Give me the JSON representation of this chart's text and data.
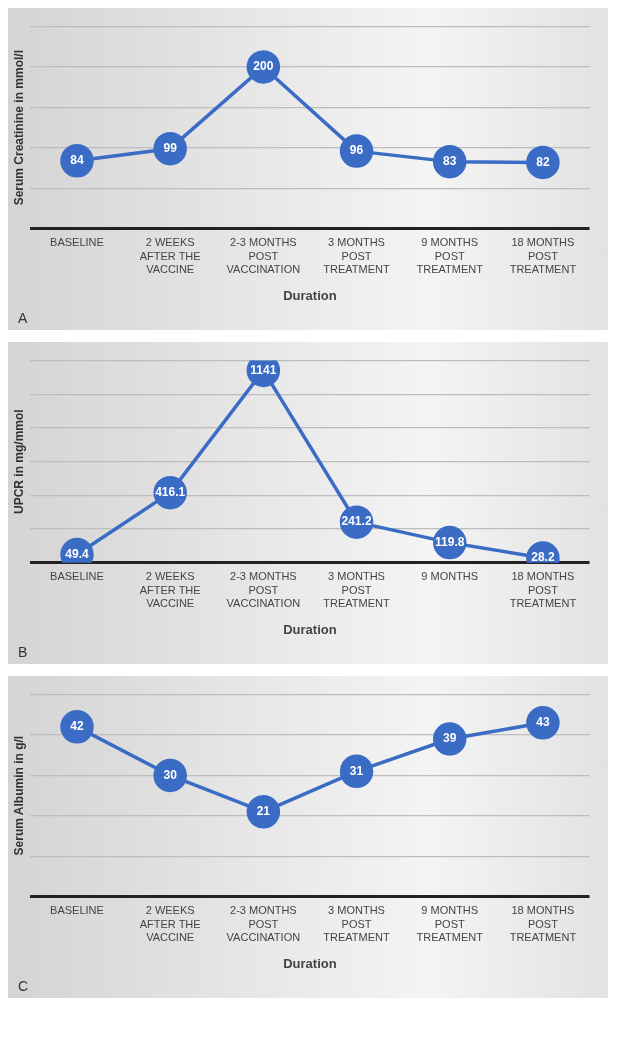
{
  "chart_data": [
    {
      "type": "line",
      "categories": [
        "BASELINE",
        "2 WEEKS AFTER THE VACCINE",
        "2-3 MONTHS POST VACCINATION",
        "3 MONTHS POST TREATMENT",
        "9 MONTHS POST TREATMENT",
        "18 MONTHS POST TREATMENT"
      ],
      "values": [
        84,
        99,
        200,
        96,
        83,
        82
      ],
      "color": "#3b6cc5",
      "ylabel": "Serum Creatinine in mmol/l",
      "xlabel": "Duration",
      "annotations": [
        "A"
      ],
      "ylim": [
        0,
        250
      ],
      "yticks": [
        {
          "value": 0,
          "label": null
        },
        {
          "value": 50,
          "label": null
        },
        {
          "value": 100,
          "label": null
        },
        {
          "value": 150,
          "label": null
        },
        {
          "value": 200,
          "label": null
        },
        {
          "value": 250,
          "label": null
        }
      ],
      "grid": "y",
      "tick_labels": "x",
      "data_labels": true,
      "marker": "circle",
      "line_style": "solid"
    },
    {
      "type": "line",
      "categories": [
        "BASELINE",
        "2 WEEKS AFTER THE VACCINE",
        "2-3 MONTHS POST VACCINATION",
        "3 MONTHS POST TREATMENT",
        "9 MONTHS",
        "18 MONTHS POST TREATMENT"
      ],
      "values": [
        49.4,
        416.1,
        1141,
        241.2,
        119.8,
        28.2
      ],
      "color": "#3b6cc5",
      "ylabel": "UPCR in mg/mmol",
      "xlabel": "Duration",
      "annotations": [
        "B"
      ],
      "ylim": [
        0,
        1200
      ],
      "yticks": [
        {
          "value": 0,
          "label": null
        },
        {
          "value": 200,
          "label": null
        },
        {
          "value": 400,
          "label": null
        },
        {
          "value": 600,
          "label": null
        },
        {
          "value": 800,
          "label": null
        },
        {
          "value": 1000,
          "label": null
        },
        {
          "value": 1200,
          "label": null
        }
      ],
      "grid": "y",
      "tick_labels": "x",
      "data_labels": true,
      "marker": "circle",
      "line_style": "solid"
    },
    {
      "type": "line",
      "categories": [
        "BASELINE",
        "2 WEEKS AFTER THE VACCINE",
        "2-3 MONTHS POST VACCINATION",
        "3 MONTHS POST TREATMENT",
        "9 MONTHS POST TREATMENT",
        "18 MONTHS POST TREATMENT"
      ],
      "values": [
        42,
        30,
        21,
        31,
        39,
        43
      ],
      "color": "#3b6cc5",
      "ylabel": "Serum Albumin in g/l",
      "xlabel": "Duration",
      "annotations": [
        "C"
      ],
      "ylim": [
        0,
        50
      ],
      "yticks": [
        {
          "value": 0,
          "label": null
        },
        {
          "value": 10,
          "label": null
        },
        {
          "value": 20,
          "label": null
        },
        {
          "value": 30,
          "label": null
        },
        {
          "value": 40,
          "label": null
        },
        {
          "value": 50,
          "label": null
        }
      ],
      "grid": "y",
      "tick_labels": "x",
      "data_labels": true,
      "marker": "circle",
      "line_style": "solid"
    }
  ]
}
